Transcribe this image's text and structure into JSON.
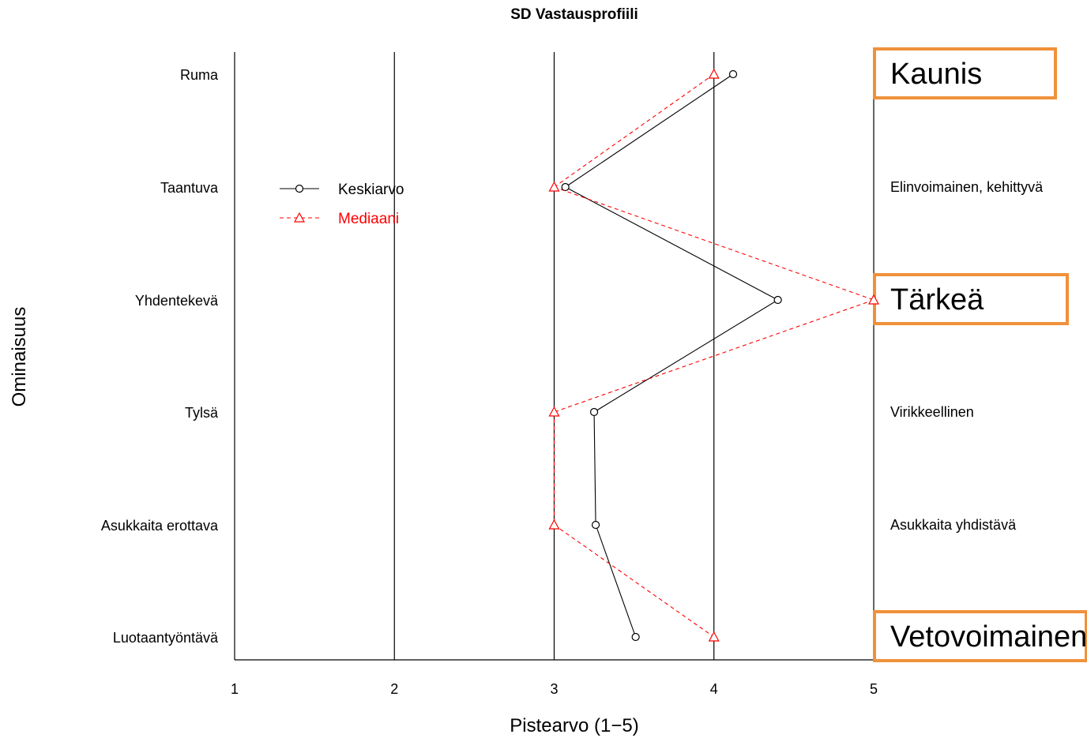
{
  "chart_data": {
    "type": "line",
    "title": "SD Vastausprofiili",
    "xlabel": "Pistearvo (1−5)",
    "ylabel": "Ominaisuus",
    "xlim": [
      1,
      5
    ],
    "x_ticks": [
      "1",
      "2",
      "3",
      "4",
      "5"
    ],
    "vertical_gridlines_at": [
      2,
      3,
      4,
      5
    ],
    "left_labels": [
      "Ruma",
      "Taantuva",
      "Yhdentekevä",
      "Tylsä",
      "Asukkaita erottava",
      "Luotaantyöntävä"
    ],
    "right_labels": [
      "Kaunis",
      "Elinvoimainen, kehittyvä",
      "Tärkeä",
      "Virikkeellinen",
      "Asukkaita yhdistävä",
      "Vetovoimainen"
    ],
    "highlighted_right_labels": [
      "Kaunis",
      "Tärkeä",
      "Vetovoimainen"
    ],
    "legend_position": "upper-left",
    "series": [
      {
        "name": "Keskiarvo",
        "style": "solid",
        "marker": "circle",
        "color": "#000000",
        "values": [
          4.12,
          3.07,
          4.4,
          3.25,
          3.26,
          3.51
        ]
      },
      {
        "name": "Mediaani",
        "style": "dashed",
        "marker": "triangle",
        "color": "#ff0000",
        "values": [
          4,
          3,
          5,
          3,
          3,
          4
        ]
      }
    ],
    "highlight_color": "#f0913a"
  }
}
